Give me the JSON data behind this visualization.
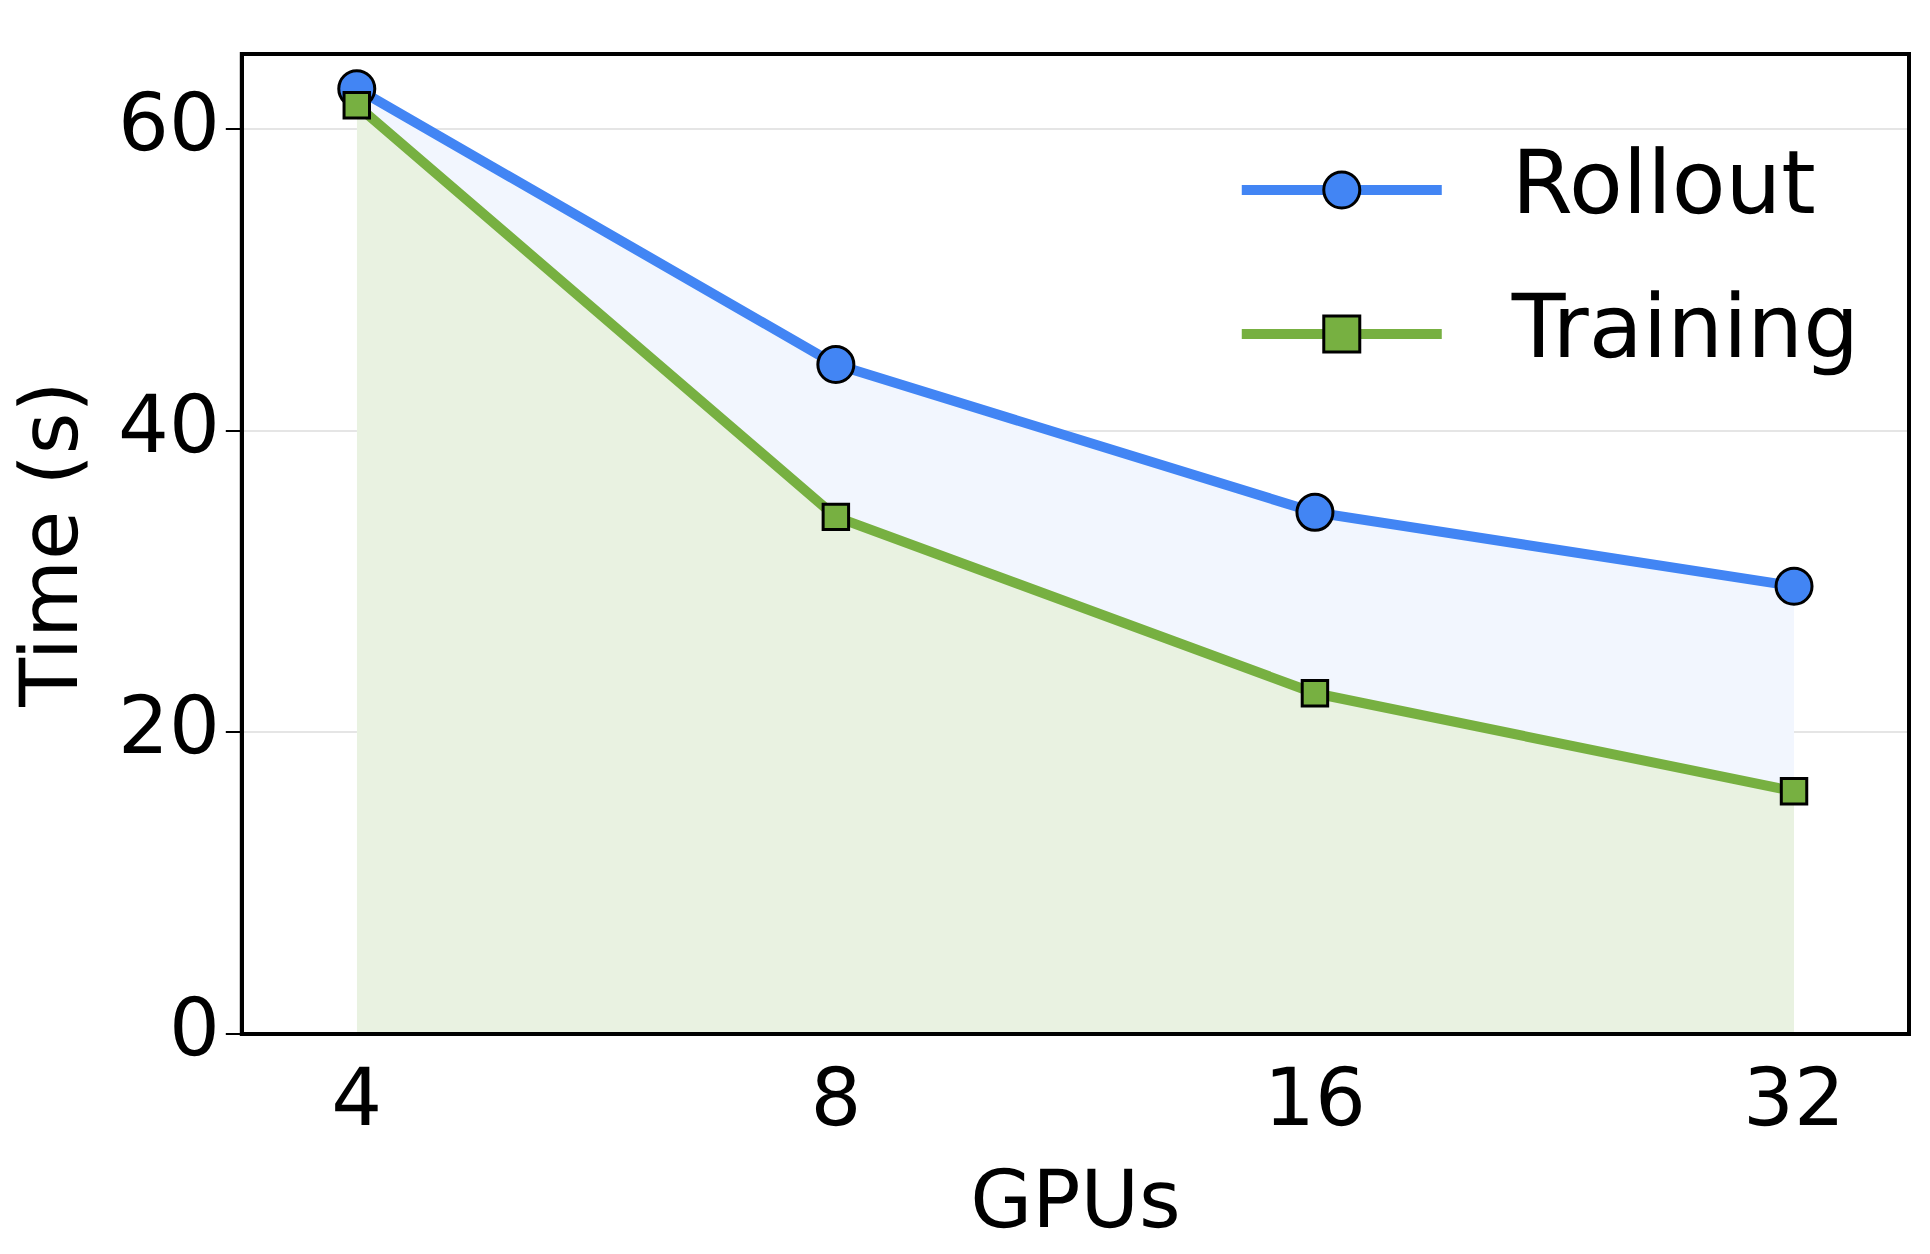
{
  "chart_data": {
    "type": "area",
    "xlabel": "GPUs",
    "ylabel": "Time (s)",
    "categories": [
      "4",
      "8",
      "16",
      "32"
    ],
    "series": [
      {
        "name": "Rollout",
        "color": "#4285f4",
        "marker": "circle",
        "values": [
          62.7,
          44.4,
          34.6,
          29.7
        ]
      },
      {
        "name": "Training",
        "color": "#77b041",
        "marker": "square",
        "values": [
          61.6,
          34.3,
          22.6,
          16.1
        ]
      }
    ],
    "ylim": [
      0,
      65
    ],
    "yticks": [
      0,
      20,
      40,
      60
    ],
    "grid": "y",
    "legend": "top right",
    "line_style": "solid"
  }
}
